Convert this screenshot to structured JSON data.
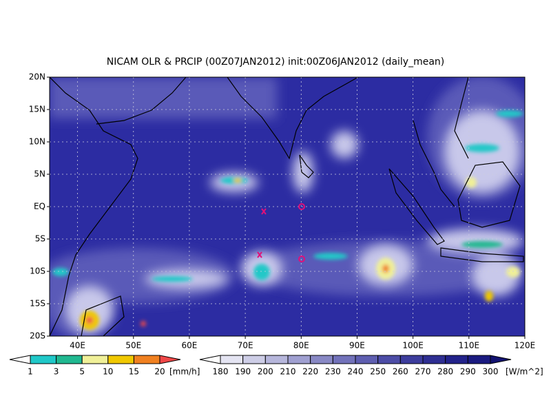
{
  "title": "NICAM OLR & PRCIP (00Z07JAN2012) init:00Z06JAN2012 (daily_mean)",
  "lat_labels": [
    "20N",
    "15N",
    "10N",
    "5N",
    "EQ",
    "5S",
    "10S",
    "15S",
    "20S"
  ],
  "lon_labels": [
    "40E",
    "50E",
    "60E",
    "70E",
    "80E",
    "90E",
    "100E",
    "110E",
    "120E"
  ],
  "precip_colorbar": {
    "labels": [
      "1",
      "3",
      "5",
      "10",
      "15",
      "20"
    ],
    "unit": "[mm/h]",
    "colors": [
      "#ffffff",
      "#20c8c8",
      "#20b890",
      "#f0f098",
      "#f0c800",
      "#f08020",
      "#f04848"
    ]
  },
  "olr_colorbar": {
    "labels": [
      "180",
      "190",
      "200",
      "210",
      "220",
      "230",
      "240",
      "250",
      "260",
      "270",
      "280",
      "290",
      "300"
    ],
    "unit": "[W/m^2]",
    "colors": [
      "#ffffff",
      "#e4e4f2",
      "#cdcde6",
      "#b6b6db",
      "#9f9fd0",
      "#8888c4",
      "#7272ba",
      "#5e5eb0",
      "#4c4ca6",
      "#3c3c9c",
      "#2e2e92",
      "#22228a",
      "#1a1a80",
      "#121270"
    ]
  }
}
